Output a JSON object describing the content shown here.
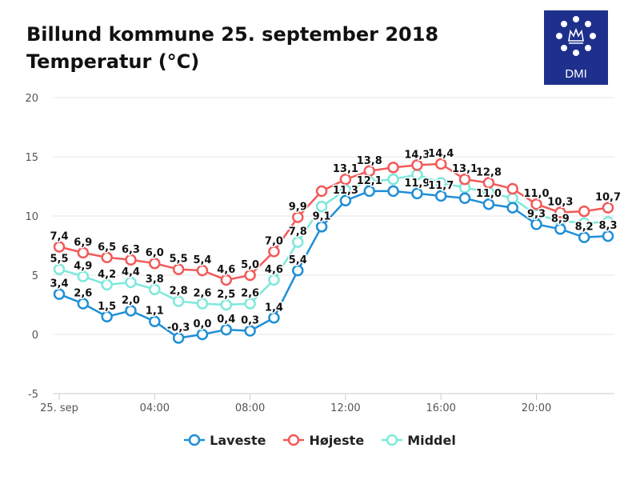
{
  "header": {
    "title_line1": "Billund kommune 25. september 2018",
    "title_line2": "Temperatur (°C)"
  },
  "logo": {
    "text": "DMI",
    "background": "#1e2f8c"
  },
  "chart_data": {
    "type": "line",
    "ylim": [
      -5,
      20
    ],
    "yticks": [
      -5,
      0,
      5,
      10,
      15,
      20
    ],
    "xlim": [
      0,
      23
    ],
    "xticks": [
      {
        "hour": 0,
        "label": "25. sep"
      },
      {
        "hour": 4,
        "label": "04:00"
      },
      {
        "hour": 8,
        "label": "08:00"
      },
      {
        "hour": 12,
        "label": "12:00"
      },
      {
        "hour": 16,
        "label": "16:00"
      },
      {
        "hour": 20,
        "label": "20:00"
      }
    ],
    "x": [
      0,
      1,
      2,
      3,
      4,
      5,
      6,
      7,
      8,
      9,
      10,
      11,
      12,
      13,
      14,
      15,
      16,
      17,
      18,
      19,
      20,
      21,
      22,
      23
    ],
    "grid": true,
    "legend_position": "bottom",
    "series": [
      {
        "name": "Laveste",
        "color": "#1f8fd6",
        "values": [
          3.4,
          2.6,
          1.5,
          2.0,
          1.1,
          -0.3,
          0.0,
          0.4,
          0.3,
          1.4,
          5.4,
          9.1,
          11.3,
          12.1,
          12.1,
          11.9,
          11.7,
          11.5,
          11.0,
          10.7,
          9.3,
          8.9,
          8.2,
          8.3
        ],
        "labels": [
          "3,4",
          "2,6",
          "1,5",
          "2,0",
          "1,1",
          "-0,3",
          "0,0",
          "0,4",
          "0,3",
          "1,4",
          "5,4",
          "9,1",
          "11,3",
          "12,1",
          "",
          "11,9",
          "11,7",
          "",
          "11,0",
          "",
          "9,3",
          "8,9",
          "8,2",
          "8,3"
        ]
      },
      {
        "name": "Højeste",
        "color": "#f25a5a",
        "values": [
          7.4,
          6.9,
          6.5,
          6.3,
          6.0,
          5.5,
          5.4,
          4.6,
          5.0,
          7.0,
          9.9,
          12.1,
          13.1,
          13.8,
          14.1,
          14.3,
          14.4,
          13.1,
          12.8,
          12.3,
          11.0,
          10.3,
          10.4,
          10.7
        ],
        "labels": [
          "7,4",
          "6,9",
          "6,5",
          "6,3",
          "6,0",
          "5,5",
          "5,4",
          "4,6",
          "5,0",
          "7,0",
          "9,9",
          "",
          "13,1",
          "13,8",
          "",
          "14,3",
          "14,4",
          "13,1",
          "12,8",
          "",
          "11,0",
          "10,3",
          "",
          "10,7"
        ]
      },
      {
        "name": "Middel",
        "color": "#7ee8dc",
        "values": [
          5.5,
          4.9,
          4.2,
          4.4,
          3.8,
          2.8,
          2.6,
          2.5,
          2.6,
          4.6,
          7.8,
          10.8,
          12.2,
          12.9,
          13.1,
          13.5,
          12.8,
          12.4,
          12.0,
          11.5,
          10.1,
          9.6,
          9.4,
          9.5
        ],
        "labels": [
          "5,5",
          "4,9",
          "4,2",
          "4,4",
          "3,8",
          "2,8",
          "2,6",
          "2,5",
          "2,6",
          "4,6",
          "7,8",
          "",
          "",
          "",
          "",
          "",
          "",
          "",
          "",
          "",
          "",
          "",
          "",
          ""
        ]
      }
    ]
  }
}
